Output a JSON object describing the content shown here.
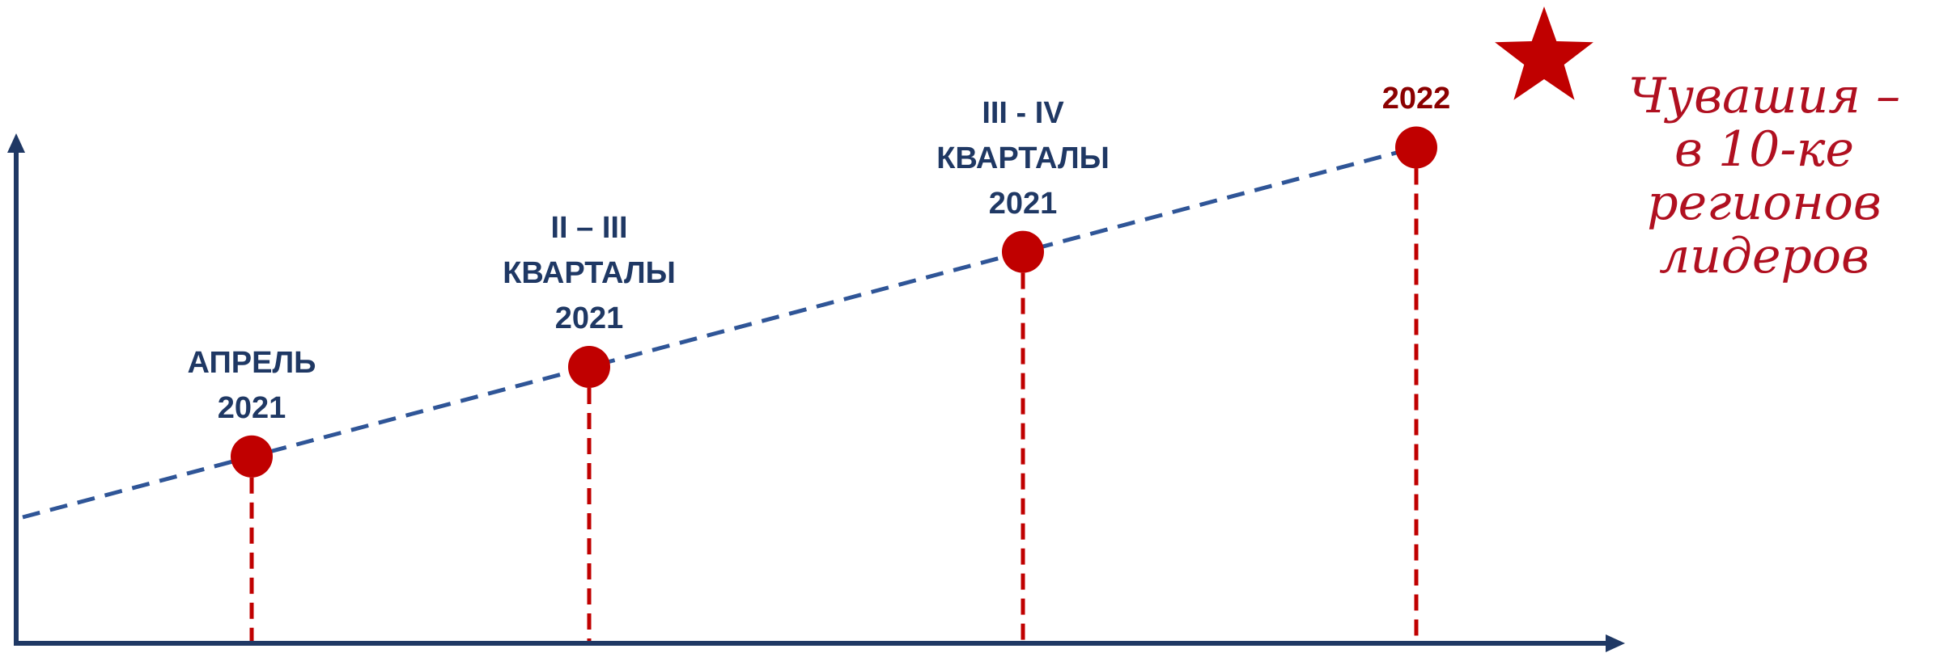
{
  "milestones": [
    {
      "lines": [
        "АПРЕЛЬ",
        "2021"
      ],
      "progress": 0.23
    },
    {
      "lines": [
        "II – III",
        "КВАРТАЛЫ",
        "2021"
      ],
      "progress": 0.37
    },
    {
      "lines": [
        "III - IV",
        "КВАРТАЛЫ",
        "2021"
      ],
      "progress": 0.58
    },
    {
      "lines": [
        "2022"
      ],
      "progress": 0.72
    }
  ],
  "goal": {
    "lines": [
      "Чувашия –",
      "в 10-ке",
      "регионов",
      "лидеров"
    ],
    "icon": "star-icon"
  },
  "colors": {
    "axis": "#1f3864",
    "trend": "#2f5597",
    "marker": "#c00000",
    "label": "#1f3864",
    "final_label": "#8b0000",
    "goal_text": "#b01020"
  }
}
